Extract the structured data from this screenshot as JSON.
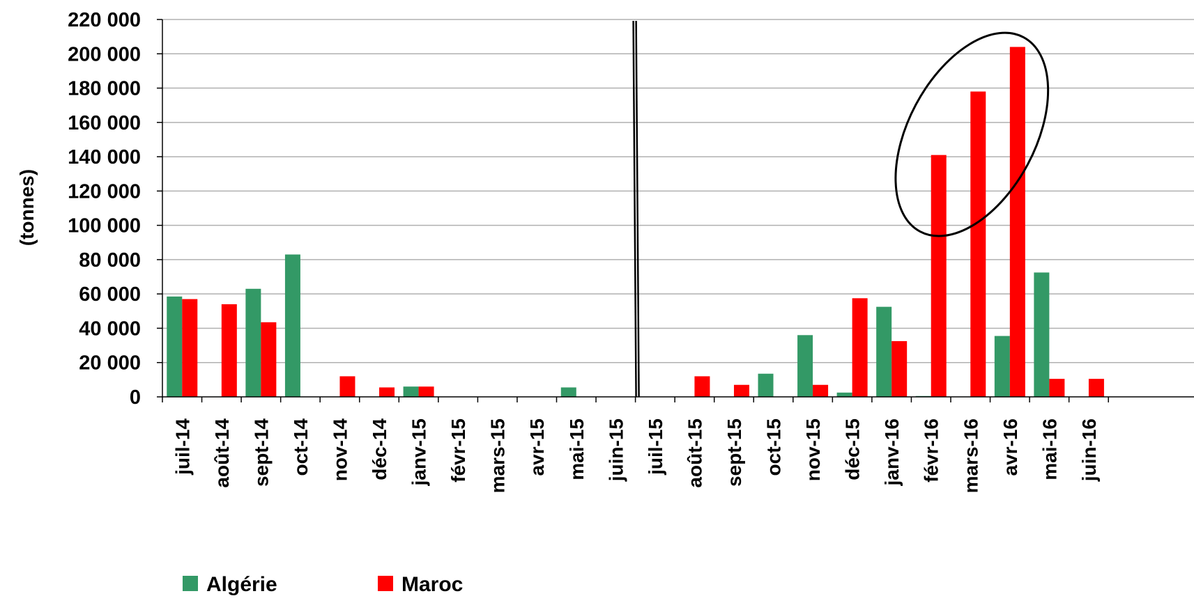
{
  "chart_data": {
    "type": "bar",
    "title": "",
    "xlabel": "",
    "ylabel": "(tonnes)",
    "ylim": [
      0,
      220000
    ],
    "yticks": [
      0,
      20000,
      40000,
      60000,
      80000,
      100000,
      120000,
      140000,
      160000,
      180000,
      200000,
      220000
    ],
    "ytick_labels": [
      "0",
      "20 000",
      "40 000",
      "60 000",
      "80 000",
      "100 000",
      "120 000",
      "140 000",
      "160 000",
      "180 000",
      "200 000",
      "220 000"
    ],
    "grid": true,
    "legend_position": "bottom-left",
    "axis_break_after": "juin-15",
    "highlight_ellipse_categories": [
      "févr-16",
      "mars-16",
      "avr-16"
    ],
    "categories": [
      "juil-14",
      "août-14",
      "sept-14",
      "oct-14",
      "nov-14",
      "déc-14",
      "janv-15",
      "févr-15",
      "mars-15",
      "avr-15",
      "mai-15",
      "juin-15",
      "juil-15",
      "août-15",
      "sept-15",
      "oct-15",
      "nov-15",
      "déc-15",
      "janv-16",
      "févr-16",
      "mars-16",
      "avr-16",
      "mai-16",
      "juin-16"
    ],
    "series": [
      {
        "name": "Algérie",
        "color": "#339966",
        "values": [
          58500,
          0,
          63000,
          83000,
          0,
          0,
          6000,
          0,
          0,
          0,
          5500,
          0,
          0,
          0,
          0,
          13500,
          36000,
          2500,
          52500,
          500,
          0,
          35500,
          72500,
          0
        ]
      },
      {
        "name": "Maroc",
        "color": "#ff0000",
        "values": [
          57000,
          54000,
          43500,
          0,
          12000,
          5500,
          6000,
          0,
          0,
          0,
          0,
          0,
          0,
          12000,
          7000,
          0,
          7000,
          57500,
          32500,
          141000,
          178000,
          204000,
          10500,
          10500
        ]
      }
    ]
  }
}
